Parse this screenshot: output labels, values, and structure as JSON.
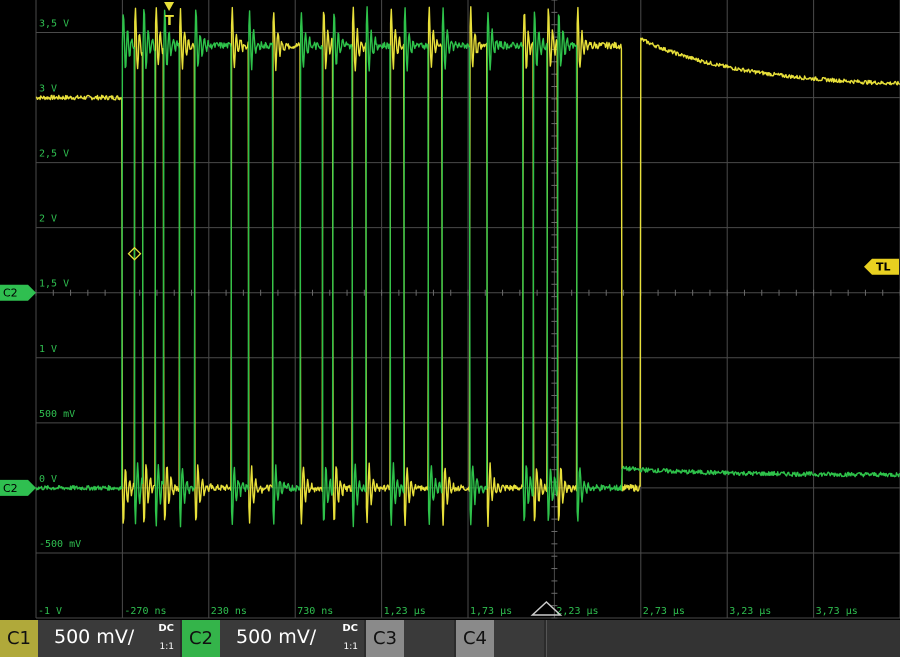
{
  "chart_data": {
    "type": "line",
    "title": "",
    "xlabel": "",
    "ylabel": "",
    "x_tick_labels": [
      "-1 V",
      "-270 ns",
      "230 ns",
      "730 ns",
      "1,23 µs",
      "1,73 µs",
      "2,23 µs",
      "2,73 µs",
      "3,23 µs",
      "3,73 µs"
    ],
    "y_tick_labels": [
      "3,5 V",
      "3 V",
      "2,5 V",
      "2 V",
      "1,5 V",
      "1 V",
      "500 mV",
      "0 V",
      "-500 mV"
    ],
    "xlim_us": [
      -0.77,
      4.23
    ],
    "ylim_v": [
      -1.0,
      3.75
    ],
    "grid": true,
    "grid_divisions": {
      "x": 10,
      "y": 8
    },
    "series": [
      {
        "name": "C1",
        "color": "#e8e03a",
        "baseline_v": 3.0,
        "high_v": 3.4,
        "low_v": 0.0,
        "tail_decay": {
          "start_us": 2.73,
          "start_v": 3.45,
          "end_us": 4.23,
          "end_v": 3.08
        },
        "edges_us": [
          -0.27,
          -0.2,
          -0.15,
          -0.08,
          -0.03,
          0.06,
          0.15,
          0.36,
          0.46,
          0.6,
          0.76,
          0.89,
          0.95,
          1.06,
          1.14,
          1.28,
          1.36,
          1.5,
          1.58,
          1.74,
          1.84,
          2.05,
          2.11,
          2.19,
          2.25,
          2.36,
          2.62
        ]
      },
      {
        "name": "C2",
        "color": "#2ec24a",
        "baseline_v": 0.0,
        "high_v": 3.4,
        "low_v": 0.0,
        "edges_us": [
          -0.27,
          -0.2,
          -0.15,
          -0.08,
          -0.03,
          0.06,
          0.15,
          0.36,
          0.46,
          0.6,
          0.76,
          0.89,
          0.95,
          1.06,
          1.14,
          1.28,
          1.36,
          1.5,
          1.58,
          1.74,
          1.84,
          2.05,
          2.11,
          2.19,
          2.25,
          2.36,
          2.62
        ]
      }
    ],
    "markers": {
      "trigger_label": "T",
      "trigger_level_label": "TL",
      "trigger_level_v": 1.7,
      "c2_offset_label": "C2",
      "c2_ground_label": "C2"
    }
  },
  "channels": [
    {
      "id": "C1",
      "scale": "500 mV/",
      "coupling": "DC",
      "probe": "1:1",
      "color": "#b8b43a",
      "active": true
    },
    {
      "id": "C2",
      "scale": "500 mV/",
      "coupling": "DC",
      "probe": "1:1",
      "color": "#34b44a",
      "active": true
    },
    {
      "id": "C3",
      "active": false,
      "color": "#8a8a8a"
    },
    {
      "id": "C4",
      "active": false,
      "color": "#8a8a8a"
    }
  ]
}
